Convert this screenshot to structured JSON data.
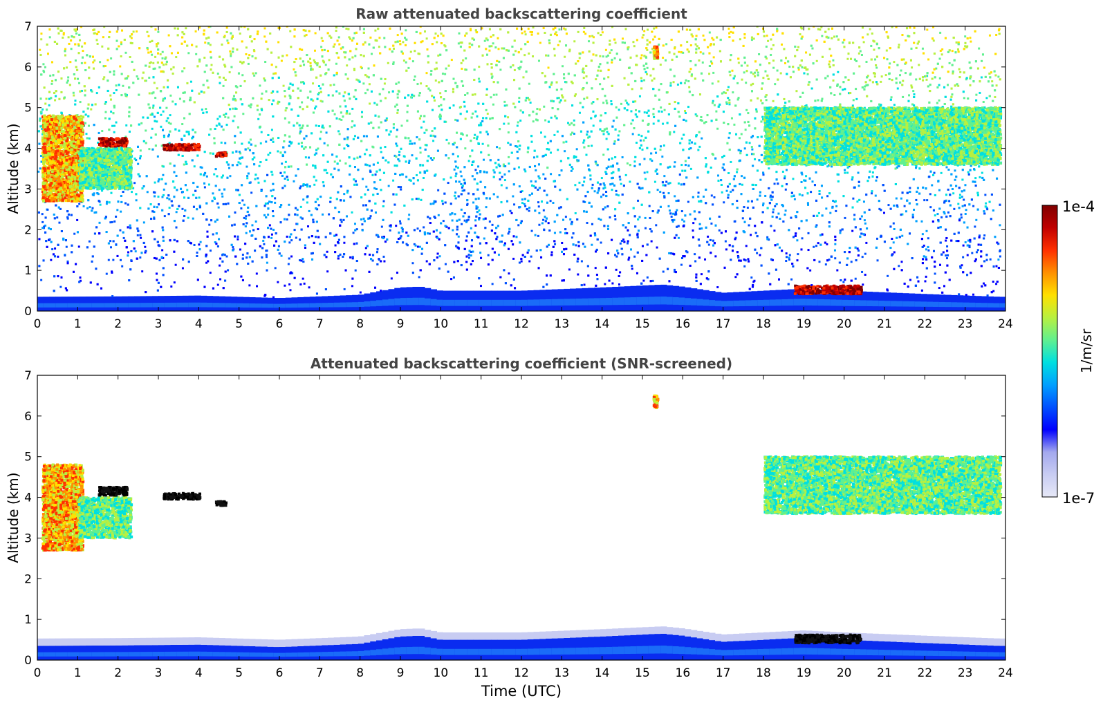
{
  "chart_data": [
    {
      "type": "heatmap",
      "title": "Raw attenuated backscattering coefficient",
      "xlabel": "",
      "ylabel": "Altitude (km)",
      "xlim": [
        0,
        24
      ],
      "ylim": [
        0,
        7
      ],
      "xticks": [
        "0",
        "1",
        "2",
        "3",
        "4",
        "5",
        "6",
        "7",
        "8",
        "9",
        "10",
        "11",
        "12",
        "13",
        "14",
        "15",
        "16",
        "17",
        "18",
        "19",
        "20",
        "21",
        "22",
        "23",
        "24"
      ],
      "yticks": [
        "0",
        "1",
        "2",
        "3",
        "4",
        "5",
        "6",
        "7"
      ],
      "data_time_end": 23.85,
      "boundary_layer_km": [
        [
          0,
          0.35
        ],
        [
          2,
          0.36
        ],
        [
          4,
          0.38
        ],
        [
          6,
          0.32
        ],
        [
          8,
          0.4
        ],
        [
          9,
          0.58
        ],
        [
          9.5,
          0.6
        ],
        [
          10,
          0.5
        ],
        [
          12,
          0.5
        ],
        [
          14,
          0.58
        ],
        [
          15.5,
          0.65
        ],
        [
          16,
          0.6
        ],
        [
          17,
          0.45
        ],
        [
          18,
          0.5
        ],
        [
          19,
          0.55
        ],
        [
          20,
          0.5
        ],
        [
          22,
          0.42
        ],
        [
          23.85,
          0.35
        ]
      ],
      "clouds": [
        {
          "t0": 0.1,
          "t1": 1.1,
          "z0": 2.7,
          "z1": 4.8,
          "level": "high"
        },
        {
          "t0": 1.0,
          "t1": 2.3,
          "z0": 3.0,
          "z1": 4.0,
          "level": "mid"
        },
        {
          "t0": 1.5,
          "t1": 2.2,
          "z0": 4.05,
          "z1": 4.25,
          "level": "max"
        },
        {
          "t0": 3.1,
          "t1": 4.0,
          "z0": 3.95,
          "z1": 4.1,
          "level": "max"
        },
        {
          "t0": 4.4,
          "t1": 4.65,
          "z0": 3.8,
          "z1": 3.9,
          "level": "max"
        },
        {
          "t0": 18.0,
          "t1": 23.85,
          "z0": 3.6,
          "z1": 5.0,
          "level": "mid"
        },
        {
          "t0": 18.75,
          "t1": 20.4,
          "z0": 0.42,
          "z1": 0.62,
          "level": "max"
        },
        {
          "t0": 15.25,
          "t1": 15.35,
          "z0": 6.2,
          "z1": 6.5,
          "level": "high"
        }
      ]
    },
    {
      "type": "heatmap",
      "title": "Attenuated backscattering coefficient (SNR-screened)",
      "xlabel": "Time (UTC)",
      "ylabel": "Altitude (km)",
      "xlim": [
        0,
        24
      ],
      "ylim": [
        0,
        7
      ],
      "xticks": [
        "0",
        "1",
        "2",
        "3",
        "4",
        "5",
        "6",
        "7",
        "8",
        "9",
        "10",
        "11",
        "12",
        "13",
        "14",
        "15",
        "16",
        "17",
        "18",
        "19",
        "20",
        "21",
        "22",
        "23",
        "24"
      ],
      "yticks": [
        "0",
        "1",
        "2",
        "3",
        "4",
        "5",
        "6",
        "7"
      ],
      "data_time_end": 23.85,
      "screened": true
    }
  ],
  "colorbar": {
    "label": "1/m/sr",
    "max_label": "1e-4",
    "min_label": "1e-7",
    "colors": [
      "#e6e8f7",
      "#c8ccf2",
      "#a3a8ee",
      "#0000ff",
      "#0050ff",
      "#00a0ff",
      "#00e0e0",
      "#60f090",
      "#b8f040",
      "#ffe000",
      "#ff9000",
      "#ff3000",
      "#c00000",
      "#800000"
    ]
  }
}
